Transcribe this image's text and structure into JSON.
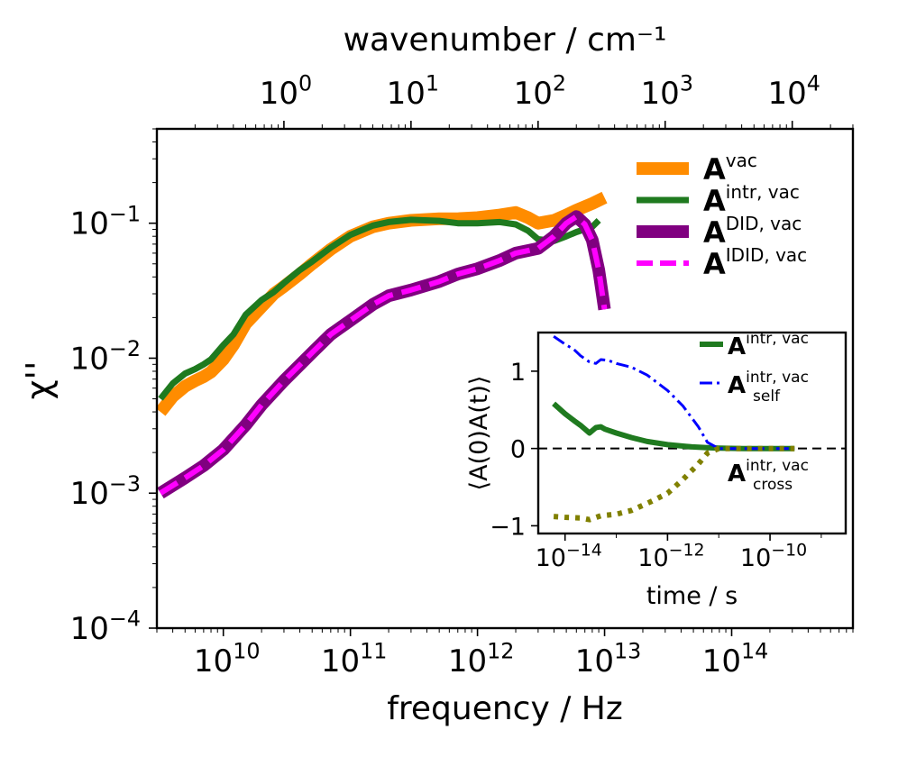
{
  "chart_data": [
    {
      "type": "line",
      "xscale": "log",
      "yscale": "log",
      "xlabel": "frequency / Hz",
      "ylabel": "χ''",
      "top_xlabel": "wavenumber / cm⁻¹",
      "xlim": [
        3000000000.0,
        900000000000000.0
      ],
      "ylim": [
        0.0001,
        0.5
      ],
      "x_ticks": [
        {
          "value": 10000000000.0,
          "base": "10",
          "exp": "10"
        },
        {
          "value": 100000000000.0,
          "base": "10",
          "exp": "11"
        },
        {
          "value": 1000000000000.0,
          "base": "10",
          "exp": "12"
        },
        {
          "value": 10000000000000.0,
          "base": "10",
          "exp": "13"
        },
        {
          "value": 100000000000000.0,
          "base": "10",
          "exp": "14"
        }
      ],
      "y_ticks": [
        {
          "value": 0.1,
          "base": "10",
          "exp": "−1"
        },
        {
          "value": 0.01,
          "base": "10",
          "exp": "−2"
        },
        {
          "value": 0.001,
          "base": "10",
          "exp": "−3"
        },
        {
          "value": 0.0001,
          "base": "10",
          "exp": "−4"
        }
      ],
      "top_ticks": [
        {
          "value": 1,
          "base": "10",
          "exp": "0"
        },
        {
          "value": 10,
          "base": "10",
          "exp": "1"
        },
        {
          "value": 100,
          "base": "10",
          "exp": "2"
        },
        {
          "value": 1000,
          "base": "10",
          "exp": "3"
        },
        {
          "value": 10000,
          "base": "10",
          "exp": "4"
        }
      ],
      "cm_to_hz": 29980000000.0,
      "legend_position": "upper right",
      "series": [
        {
          "name": "A",
          "sup": "vac",
          "color": "#ff8c00",
          "style": "thick",
          "x": [
            3200000000.0,
            4000000000.0,
            5000000000.0,
            6000000000.0,
            7000000000.0,
            8000000000.0,
            10000000000.0,
            12000000000.0,
            15000000000.0,
            20000000000.0,
            25000000000.0,
            30000000000.0,
            40000000000.0,
            50000000000.0,
            70000000000.0,
            100000000000.0,
            150000000000.0,
            200000000000.0,
            300000000000.0,
            500000000000.0,
            700000000000.0,
            1000000000000.0,
            1500000000000.0,
            2000000000000.0,
            2500000000000.0,
            3000000000000.0,
            4000000000000.0,
            5000000000000.0,
            6000000000000.0,
            8000000000000.0,
            10000000000000.0
          ],
          "y": [
            0.004,
            0.0052,
            0.0062,
            0.0068,
            0.0073,
            0.0079,
            0.0098,
            0.0125,
            0.018,
            0.024,
            0.03,
            0.034,
            0.042,
            0.05,
            0.064,
            0.08,
            0.094,
            0.1,
            0.105,
            0.108,
            0.108,
            0.11,
            0.115,
            0.12,
            0.11,
            0.1,
            0.105,
            0.115,
            0.125,
            0.14,
            0.155
          ]
        },
        {
          "name": "A",
          "sup": "intr, vac",
          "color": "#1f7a1f",
          "style": "solid",
          "x": [
            3200000000.0,
            4000000000.0,
            5000000000.0,
            6000000000.0,
            7000000000.0,
            8000000000.0,
            10000000000.0,
            12000000000.0,
            15000000000.0,
            20000000000.0,
            25000000000.0,
            30000000000.0,
            40000000000.0,
            50000000000.0,
            70000000000.0,
            100000000000.0,
            150000000000.0,
            200000000000.0,
            300000000000.0,
            500000000000.0,
            700000000000.0,
            1000000000000.0,
            1500000000000.0,
            2000000000000.0,
            2500000000000.0,
            3000000000000.0,
            4000000000000.0,
            5000000000000.0,
            6000000000000.0,
            8000000000000.0,
            9000000000000.0
          ],
          "y": [
            0.005,
            0.0065,
            0.0077,
            0.0083,
            0.009,
            0.0098,
            0.0125,
            0.015,
            0.021,
            0.027,
            0.031,
            0.036,
            0.045,
            0.052,
            0.066,
            0.082,
            0.096,
            0.102,
            0.106,
            0.104,
            0.1,
            0.1,
            0.102,
            0.098,
            0.088,
            0.076,
            0.074,
            0.08,
            0.086,
            0.094,
            0.105
          ]
        },
        {
          "name": "A",
          "sup": "DID, vac",
          "color": "#800080",
          "style": "thick",
          "x": [
            3200000000.0,
            5000000000.0,
            7000000000.0,
            10000000000.0,
            15000000000.0,
            20000000000.0,
            30000000000.0,
            50000000000.0,
            70000000000.0,
            100000000000.0,
            150000000000.0,
            200000000000.0,
            300000000000.0,
            500000000000.0,
            700000000000.0,
            1000000000000.0,
            1500000000000.0,
            2000000000000.0,
            3000000000000.0,
            4000000000000.0,
            5000000000000.0,
            6000000000000.0,
            7000000000000.0,
            8000000000000.0,
            9000000000000.0,
            10000000000000.0
          ],
          "y": [
            0.001,
            0.0013,
            0.0016,
            0.0021,
            0.0032,
            0.0045,
            0.0068,
            0.011,
            0.015,
            0.019,
            0.025,
            0.029,
            0.032,
            0.037,
            0.042,
            0.046,
            0.053,
            0.06,
            0.065,
            0.08,
            0.1,
            0.112,
            0.098,
            0.075,
            0.045,
            0.023
          ]
        },
        {
          "name": "A",
          "sup": "IDID, vac",
          "color": "#ff00ff",
          "style": "dashed",
          "x": [
            3200000000.0,
            5000000000.0,
            7000000000.0,
            10000000000.0,
            15000000000.0,
            20000000000.0,
            30000000000.0,
            50000000000.0,
            70000000000.0,
            100000000000.0,
            150000000000.0,
            200000000000.0,
            300000000000.0,
            500000000000.0,
            700000000000.0,
            1000000000000.0,
            1500000000000.0,
            2000000000000.0,
            3000000000000.0,
            4000000000000.0,
            5000000000000.0,
            6000000000000.0,
            7000000000000.0,
            8000000000000.0,
            9000000000000.0,
            10000000000000.0
          ],
          "y": [
            0.001,
            0.0013,
            0.0016,
            0.0021,
            0.0032,
            0.0045,
            0.0068,
            0.011,
            0.015,
            0.019,
            0.025,
            0.029,
            0.032,
            0.037,
            0.042,
            0.046,
            0.053,
            0.06,
            0.065,
            0.08,
            0.1,
            0.112,
            0.098,
            0.075,
            0.045,
            0.023
          ]
        }
      ]
    },
    {
      "type": "line",
      "xscale": "log",
      "xlabel": "time / s",
      "ylabel": "⟨A(0)A(t)⟩",
      "xlim": [
        3e-15,
        3e-09
      ],
      "ylim": [
        -1.1,
        1.5
      ],
      "x_ticks": [
        {
          "value": 1e-14,
          "base": "10",
          "exp": "−14"
        },
        {
          "value": 1e-12,
          "base": "10",
          "exp": "−12"
        },
        {
          "value": 1e-10,
          "base": "10",
          "exp": "−10"
        }
      ],
      "y_ticks": [
        {
          "value": 1,
          "label": "1"
        },
        {
          "value": 0,
          "label": "0"
        },
        {
          "value": -1,
          "label": "−1"
        }
      ],
      "zero_line": true,
      "series": [
        {
          "name": "A",
          "sup": "intr, vac",
          "sub": "",
          "color": "#1f7a1f",
          "style": "solid",
          "x": [
            6e-15,
            1e-14,
            1.5e-14,
            2e-14,
            3e-14,
            4e-14,
            5e-14,
            6e-14,
            1e-13,
            2e-13,
            4e-13,
            1e-12,
            3e-12,
            6e-12,
            1e-11,
            3e-11,
            1e-10,
            3e-10
          ],
          "y": [
            0.58,
            0.45,
            0.36,
            0.3,
            0.2,
            0.27,
            0.28,
            0.25,
            0.2,
            0.14,
            0.09,
            0.05,
            0.02,
            0.01,
            0.005,
            0.0,
            0.0,
            0.0
          ]
        },
        {
          "name": "A",
          "sup": "intr, vac",
          "sub": "self",
          "color": "#0000ff",
          "style": "dashdot",
          "x": [
            6e-15,
            1e-14,
            1.5e-14,
            2e-14,
            3e-14,
            4e-14,
            5e-14,
            7e-14,
            1e-13,
            2e-13,
            4e-13,
            1e-12,
            2e-12,
            4e-12,
            6e-12,
            1e-11,
            3e-11,
            1e-10,
            3e-10
          ],
          "y": [
            1.45,
            1.35,
            1.28,
            1.2,
            1.12,
            1.1,
            1.15,
            1.14,
            1.1,
            1.05,
            0.95,
            0.75,
            0.55,
            0.28,
            0.08,
            0.0,
            0.0,
            0.0,
            0.0
          ]
        },
        {
          "name": "A",
          "sup": "intr, vac",
          "sub": "cross",
          "color": "#808000",
          "style": "dotted",
          "x": [
            6e-15,
            1e-14,
            2e-14,
            3e-14,
            5e-14,
            1e-13,
            2e-13,
            5e-13,
            1e-12,
            2e-12,
            4e-12,
            6e-12,
            1e-11,
            3e-11,
            1e-10,
            3e-10
          ],
          "y": [
            -0.88,
            -0.89,
            -0.9,
            -0.92,
            -0.87,
            -0.85,
            -0.8,
            -0.68,
            -0.58,
            -0.4,
            -0.2,
            -0.06,
            0.0,
            0.0,
            0.0,
            0.0
          ]
        }
      ]
    }
  ]
}
